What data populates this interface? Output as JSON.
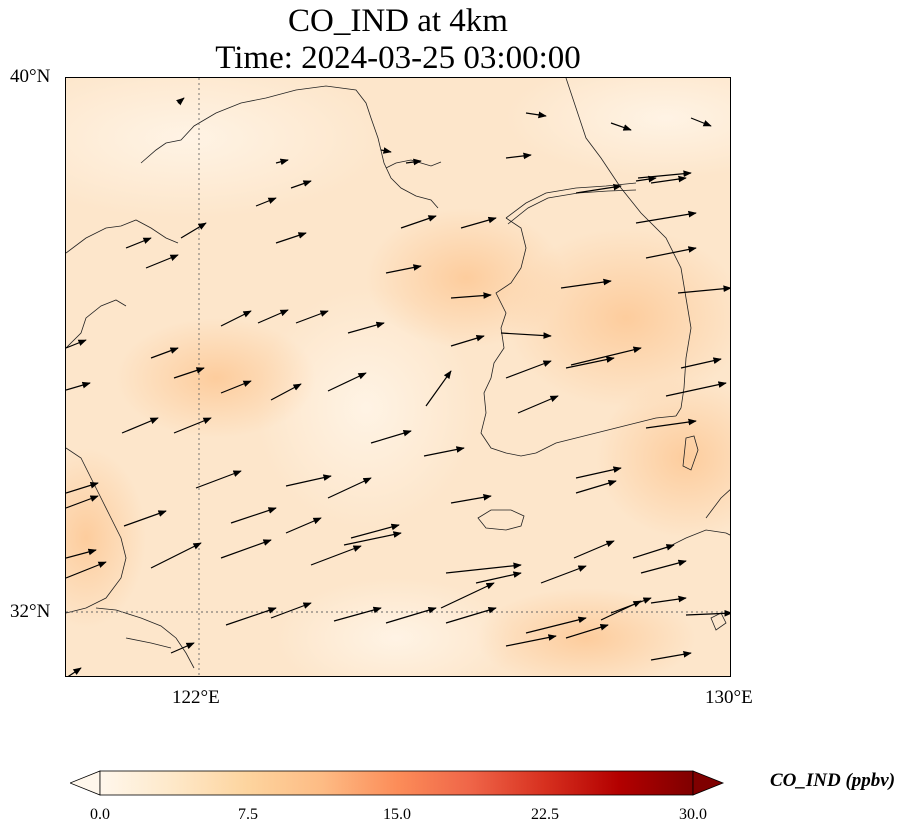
{
  "title": {
    "line1": "CO_IND at 4km",
    "line2": "Time: 2024-03-25 03:00:00"
  },
  "axes": {
    "lat_ticks": [
      "40°N",
      "32°N"
    ],
    "lon_ticks": [
      "122°E",
      "130°E"
    ],
    "lon_range": [
      120,
      130
    ],
    "lat_range": [
      31,
      40
    ],
    "gridlines": [
      {
        "lon": 122
      },
      {
        "lat": 32
      }
    ]
  },
  "colorbar": {
    "label": "CO_IND (ppbv)",
    "min": 0.0,
    "max": 30.0,
    "ticks": [
      "0.0",
      "7.5",
      "15.0",
      "22.5",
      "30.0"
    ],
    "colormap": "OrRd",
    "extend": "both",
    "colors": [
      "#fff7ec",
      "#fee8c8",
      "#fdd49e",
      "#fdbb84",
      "#fc8d59",
      "#ef6548",
      "#d7301f",
      "#b30000",
      "#7f0000"
    ]
  },
  "field": {
    "base_color": "#fde9cf",
    "typical_range_ppbv": [
      1,
      8
    ]
  },
  "wind_vectors": {
    "description_units": "wind arrows, predominantly westerly to west-southwesterly",
    "arrow_color": "#000000"
  }
}
